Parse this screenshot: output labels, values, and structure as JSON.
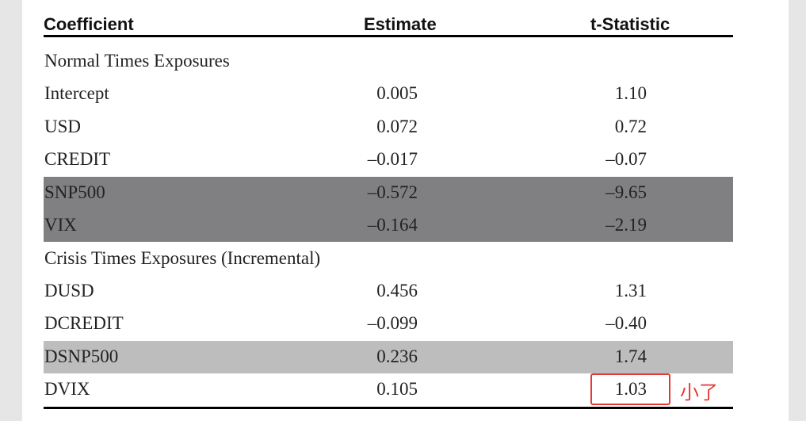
{
  "header": {
    "columns": [
      "Coefficient",
      "Estimate",
      "t-Statistic"
    ]
  },
  "sections": [
    {
      "title": "Normal Times Exposures",
      "rows": [
        {
          "cells": [
            "Intercept",
            "0.005",
            "1.10"
          ]
        },
        {
          "cells": [
            "USD",
            "0.072",
            "0.72"
          ]
        },
        {
          "cells": [
            "CREDIT",
            "–0.017",
            "–0.07"
          ]
        },
        {
          "cells": [
            "SNP500",
            "–0.572",
            "–9.65"
          ],
          "shade": "#808082"
        },
        {
          "cells": [
            "VIX",
            "–0.164",
            "–2.19"
          ],
          "shade": "#808082"
        }
      ]
    },
    {
      "title": "Crisis Times Exposures (Incremental)",
      "rows": [
        {
          "cells": [
            "DUSD",
            "0.456",
            "1.31"
          ]
        },
        {
          "cells": [
            "DCREDIT",
            "–0.099",
            "–0.40"
          ]
        },
        {
          "cells": [
            "DSNP500",
            "0.236",
            "1.74"
          ],
          "shade": "#bdbdbe"
        },
        {
          "cells": [
            "DVIX",
            "0.105",
            "1.03"
          ],
          "boxed": true
        }
      ]
    }
  ],
  "annotation": {
    "text": "小了",
    "color": "#e53935"
  }
}
